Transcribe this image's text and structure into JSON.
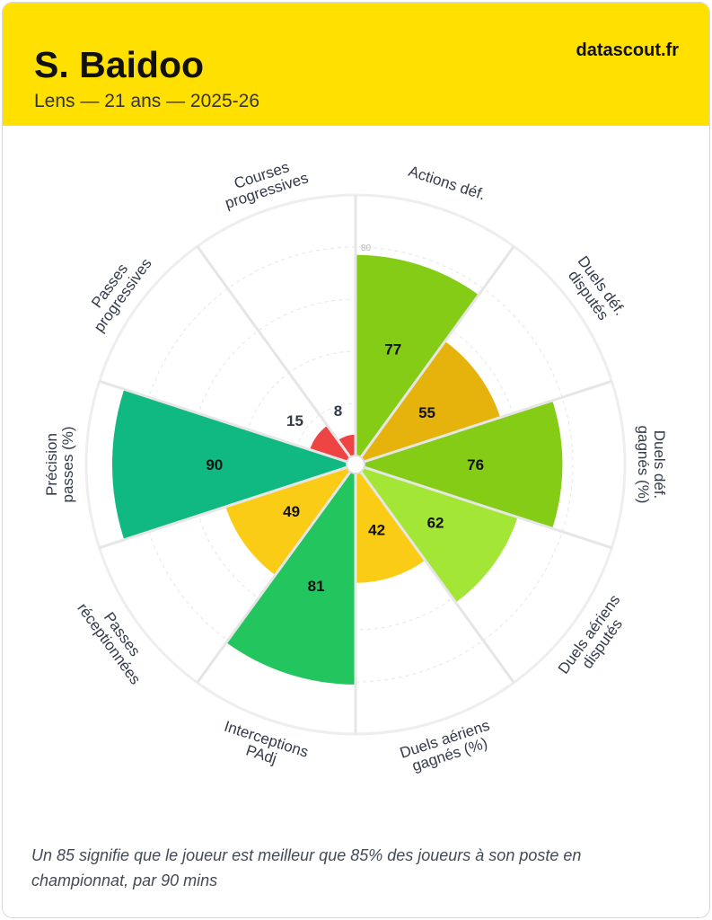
{
  "header": {
    "player_name": "S. Baidoo",
    "subtitle": "Lens — 21 ans — 2025-26",
    "brand": "datascout.fr",
    "background_color": "#ffe000"
  },
  "chart_data": {
    "type": "polar-bar",
    "scale_max": 100,
    "reference_ring_label": "80",
    "grid": true,
    "categories": [
      {
        "label": [
          "Actions déf."
        ],
        "value": 77,
        "color": "#84cc16"
      },
      {
        "label": [
          "Duels déf.",
          "disputés"
        ],
        "value": 55,
        "color": "#e5b30c"
      },
      {
        "label": [
          "Duels déf.",
          "gagnés (%)"
        ],
        "value": 76,
        "color": "#84cc16"
      },
      {
        "label": [
          "Duels aériens",
          "disputés"
        ],
        "value": 62,
        "color": "#a3e635"
      },
      {
        "label": [
          "Duels aériens",
          "gagnés (%)"
        ],
        "value": 42,
        "color": "#facc15"
      },
      {
        "label": [
          "Interceptions",
          "PAdj"
        ],
        "value": 81,
        "color": "#22c55e"
      },
      {
        "label": [
          "Passes",
          "réceptionnées"
        ],
        "value": 49,
        "color": "#facc15"
      },
      {
        "label": [
          "Précision",
          "passes (%)"
        ],
        "value": 90,
        "color": "#10b981"
      },
      {
        "label": [
          "Passes",
          "progressives"
        ],
        "value": 15,
        "color": "#ef4444"
      },
      {
        "label": [
          "Courses",
          "progressives"
        ],
        "value": 8,
        "color": "#ef4444"
      }
    ]
  },
  "footnote": "Un 85 signifie que le joueur est meilleur que 85% des joueurs à son poste en championnat, par 90 mins"
}
